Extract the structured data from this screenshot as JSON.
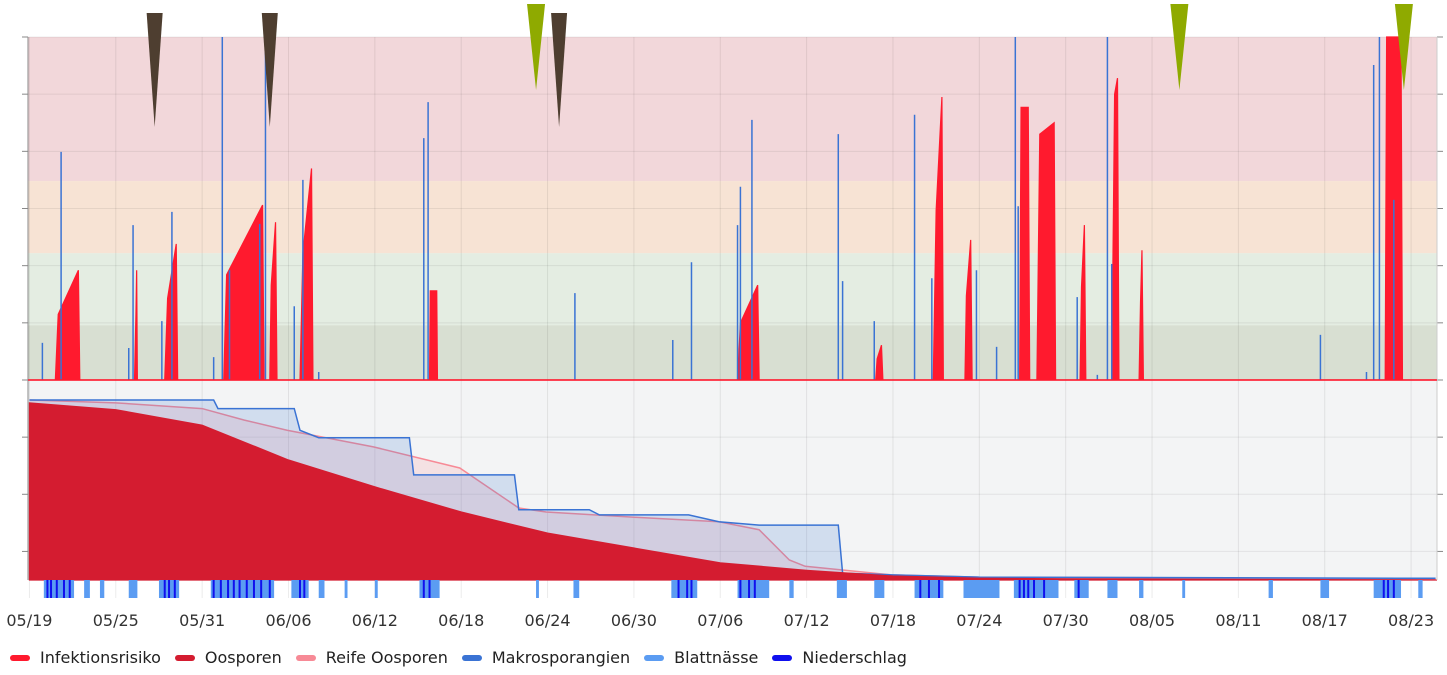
{
  "chart_data": {
    "type": "timeline",
    "xlim": [
      -0.1,
      97.8
    ],
    "xticks": [
      {
        "value": 0,
        "label": "05/19"
      },
      {
        "value": 6,
        "label": "05/25"
      },
      {
        "value": 12,
        "label": "05/31"
      },
      {
        "value": 18,
        "label": "06/06"
      },
      {
        "value": 24,
        "label": "06/12"
      },
      {
        "value": 30,
        "label": "06/18"
      },
      {
        "value": 36,
        "label": "06/24"
      },
      {
        "value": 42,
        "label": "06/30"
      },
      {
        "value": 48,
        "label": "07/06"
      },
      {
        "value": 54,
        "label": "07/12"
      },
      {
        "value": 60,
        "label": "07/18"
      },
      {
        "value": 66,
        "label": "07/24"
      },
      {
        "value": 72,
        "label": "07/30"
      },
      {
        "value": 78,
        "label": "08/05"
      },
      {
        "value": 84,
        "label": "08/11"
      },
      {
        "value": 90,
        "label": "08/17"
      },
      {
        "value": 96,
        "label": "08/23"
      }
    ],
    "panels": [
      {
        "ylim": [
          0,
          6
        ],
        "yticks": [
          0,
          1,
          2,
          3,
          4,
          5,
          6
        ],
        "bands": [
          {
            "from": 0,
            "to": 0.96,
            "color": "#d8dfd2"
          },
          {
            "from": 0.96,
            "to": 2.22,
            "color": "#e4ede2"
          },
          {
            "from": 2.22,
            "to": 3.48,
            "color": "#f7e3d4"
          },
          {
            "from": 3.48,
            "to": 6,
            "color": "#f2d7da"
          }
        ]
      },
      {
        "ylim": [
          0,
          3.5
        ],
        "yticks": [
          0.5,
          1.5,
          2.5,
          3.5
        ],
        "background": "#f3f4f5"
      }
    ],
    "markers": [
      {
        "x": 8.7,
        "color": "#4e3e30"
      },
      {
        "x": 16.7,
        "color": "#4e3e30"
      },
      {
        "x": 36.8,
        "color": "#4e3e30"
      },
      {
        "x": 35.2,
        "color": "#8faa00"
      },
      {
        "x": 79.9,
        "color": "#8faa00"
      },
      {
        "x": 95.5,
        "color": "#8faa00"
      }
    ],
    "series": [
      {
        "name": "Infektionsrisiko",
        "color": "#ff1a2e",
        "kind": "area",
        "panel": 0,
        "x": [
          0,
          1.8,
          2.0,
          3.4,
          3.5,
          7.3,
          7.4,
          7.45,
          7.5,
          9.4,
          9.6,
          10.2,
          10.3,
          13.5,
          13.7,
          16.2,
          16.3,
          16.7,
          16.8,
          17.1,
          17.2,
          18.8,
          19.0,
          19.6,
          19.7,
          27.8,
          27.85,
          28.3,
          28.35,
          49.2,
          49.4,
          50.6,
          50.7,
          58.8,
          58.9,
          59.2,
          59.3,
          62.8,
          63.0,
          63.4,
          63.5,
          65.0,
          65.1,
          65.4,
          65.5,
          68.8,
          68.9,
          69.4,
          69.5,
          70.0,
          70.2,
          71.2,
          71.3,
          73.0,
          73.1,
          73.3,
          73.4,
          75.2,
          75.4,
          75.6,
          75.7,
          77.1,
          77.2,
          77.3,
          77.4,
          94.2,
          94.3,
          95.3,
          95.4,
          97.8
        ],
        "values": [
          0,
          0,
          1.15,
          1.92,
          0,
          0,
          1.15,
          1.92,
          0,
          0,
          1.43,
          2.38,
          0,
          0,
          1.84,
          3.06,
          0,
          0,
          1.66,
          2.76,
          0,
          0,
          2.22,
          3.7,
          0,
          0,
          1.56,
          1.56,
          0,
          0,
          1.0,
          1.66,
          0,
          0,
          0.37,
          0.61,
          0,
          0,
          2.97,
          4.95,
          0,
          0,
          1.47,
          2.45,
          0,
          0,
          4.77,
          4.77,
          0,
          0,
          4.3,
          4.5,
          0,
          0,
          1.63,
          2.71,
          0,
          0,
          5.0,
          5.28,
          0,
          0,
          1.36,
          2.27,
          0,
          0,
          6,
          6,
          0,
          0
        ]
      },
      {
        "name": "Oosporen",
        "color": "#d41c30",
        "kind": "area",
        "panel": 1,
        "x": [
          0,
          6,
          12,
          18,
          24,
          30,
          36,
          42,
          48,
          54,
          60,
          66,
          72,
          97.8
        ],
        "values": [
          3.1,
          2.98,
          2.71,
          2.1,
          1.63,
          1.19,
          0.82,
          0.56,
          0.3,
          0.17,
          0.07,
          0.03,
          0.02,
          0
        ]
      },
      {
        "name": "Reife Oosporen",
        "color": "#f78a96",
        "kind": "line",
        "panel": 1,
        "x": [
          0,
          6,
          12,
          14.9,
          17.9,
          23.9,
          29.9,
          34,
          35.9,
          41.9,
          47.9,
          50.7,
          52.8,
          53.9,
          59.9,
          65.9,
          97.7
        ],
        "values": [
          3.15,
          3.1,
          3.0,
          2.8,
          2.62,
          2.33,
          1.96,
          1.26,
          1.19,
          1.1,
          1.02,
          0.88,
          0.35,
          0.24,
          0.09,
          0.05,
          0.02
        ]
      },
      {
        "name": "Makrosporangien",
        "color": "#3a73d4",
        "kind": "line",
        "panel": 1,
        "x": [
          0,
          12.8,
          13.1,
          18.4,
          18.8,
          20.1,
          26.4,
          26.7,
          33.7,
          34.0,
          38.9,
          39.6,
          45.8,
          47.9,
          50.7,
          56.2,
          56.5,
          59.9,
          66.0,
          97.7
        ],
        "values": [
          3.15,
          3.15,
          3.0,
          3.0,
          2.62,
          2.49,
          2.49,
          1.84,
          1.84,
          1.23,
          1.23,
          1.14,
          1.14,
          1.02,
          0.96,
          0.96,
          0.12,
          0.09,
          0.05,
          0.03
        ],
        "spikes": {
          "panel": 0,
          "x": [
            0.9,
            2.2,
            6.9,
            7.2,
            9.2,
            9.9,
            12.8,
            13.4,
            13.9,
            16.0,
            16.4,
            18.4,
            19.0,
            20.1,
            27.4,
            27.7,
            37.9,
            44.7,
            46.0,
            49.2,
            49.4,
            50.2,
            56.2,
            56.5,
            58.7,
            61.5,
            62.7,
            65.8,
            67.2,
            68.5,
            68.7,
            72.8,
            74.2,
            74.9,
            75.2,
            89.7,
            92.9,
            93.4,
            93.8,
            94.8
          ],
          "values": [
            0.65,
            3.99,
            0.56,
            2.71,
            1.03,
            2.94,
            0.4,
            6,
            1.92,
            2.73,
            6,
            1.29,
            3.5,
            0.14,
            4.23,
            4.86,
            1.52,
            0.7,
            2.06,
            2.71,
            3.38,
            4.55,
            4.3,
            1.73,
            1.03,
            4.64,
            1.78,
            1.92,
            0.58,
            6,
            3.04,
            1.45,
            0.09,
            6,
            2.03,
            0.79,
            0.14,
            5.51,
            6,
            3.15
          ]
        }
      },
      {
        "name": "Blattnässe",
        "color": "#5b9cf2",
        "kind": "strips",
        "intervals": [
          [
            1.0,
            3.1
          ],
          [
            3.8,
            4.2
          ],
          [
            4.9,
            5.2
          ],
          [
            6.9,
            7.5
          ],
          [
            9.0,
            10.4
          ],
          [
            12.6,
            17.0
          ],
          [
            18.2,
            19.4
          ],
          [
            20.1,
            20.5
          ],
          [
            21.9,
            22.1
          ],
          [
            24.0,
            24.2
          ],
          [
            27.1,
            28.5
          ],
          [
            35.2,
            35.4
          ],
          [
            37.8,
            38.2
          ],
          [
            44.6,
            46.4
          ],
          [
            49.2,
            51.4
          ],
          [
            52.8,
            53.1
          ],
          [
            56.1,
            56.8
          ],
          [
            58.7,
            59.4
          ],
          [
            61.5,
            63.5
          ],
          [
            64.9,
            67.4
          ],
          [
            68.4,
            71.5
          ],
          [
            72.6,
            73.6
          ],
          [
            74.9,
            75.6
          ],
          [
            77.1,
            77.4
          ],
          [
            80.1,
            80.3
          ],
          [
            86.1,
            86.4
          ],
          [
            89.7,
            90.3
          ],
          [
            93.4,
            95.3
          ],
          [
            96.5,
            96.8
          ]
        ]
      },
      {
        "name": "Niederschlag",
        "color": "#1010ee",
        "kind": "ticks",
        "x": [
          1.25,
          1.5,
          1.9,
          2.4,
          2.8,
          9.4,
          9.7,
          10.1,
          12.8,
          13.3,
          13.8,
          14.2,
          14.6,
          15.1,
          15.6,
          16.1,
          16.7,
          18.8,
          19.1,
          27.4,
          27.8,
          45.1,
          45.7,
          46.0,
          49.4,
          50.0,
          50.4,
          61.9,
          62.5,
          63.2,
          68.8,
          69.1,
          69.4,
          69.8,
          70.5,
          72.9,
          94.1,
          94.4,
          94.8
        ]
      }
    ]
  }
}
